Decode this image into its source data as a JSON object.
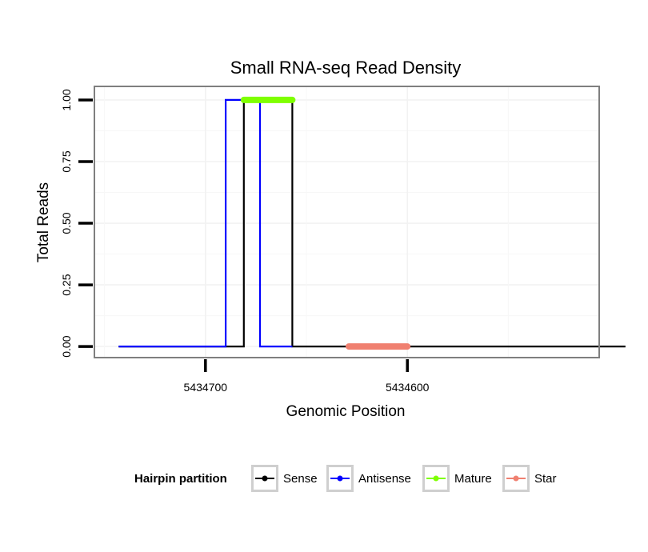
{
  "chart_data": {
    "type": "line",
    "title": "Small RNA-seq Read Density",
    "xlabel": "Genomic Position",
    "ylabel": "Total Reads",
    "x_reversed": true,
    "xlim": [
      5434755,
      5434505
    ],
    "ylim": [
      -0.045,
      1.055
    ],
    "x_ticks": [
      5434700,
      5434600
    ],
    "x_tick_labels": [
      "5434700",
      "5434600"
    ],
    "y_ticks": [
      0,
      0.25,
      0.5,
      0.75,
      1.0
    ],
    "y_tick_labels": [
      "0.00",
      "0.25",
      "0.50",
      "0.75",
      "1.00"
    ],
    "grid": true,
    "legend_position": "bottom",
    "legend_title": "Hairpin partition",
    "series": [
      {
        "name": "Sense",
        "color": "#000000",
        "x": [
          5434743,
          5434681,
          5434681,
          5434657,
          5434657,
          5434492
        ],
        "y": [
          0,
          0,
          1,
          1,
          0,
          0
        ]
      },
      {
        "name": "Antisense",
        "color": "#0000ff",
        "x": [
          5434743,
          5434690,
          5434690,
          5434673,
          5434673,
          5434657
        ],
        "y": [
          0,
          0,
          1,
          1,
          0,
          0
        ]
      },
      {
        "name": "Mature",
        "color": "#7fff00",
        "x": [
          5434681,
          5434657
        ],
        "y": [
          1,
          1
        ]
      },
      {
        "name": "Star",
        "color": "#f08070",
        "x": [
          5434629,
          5434600
        ],
        "y": [
          0,
          0
        ]
      }
    ]
  }
}
